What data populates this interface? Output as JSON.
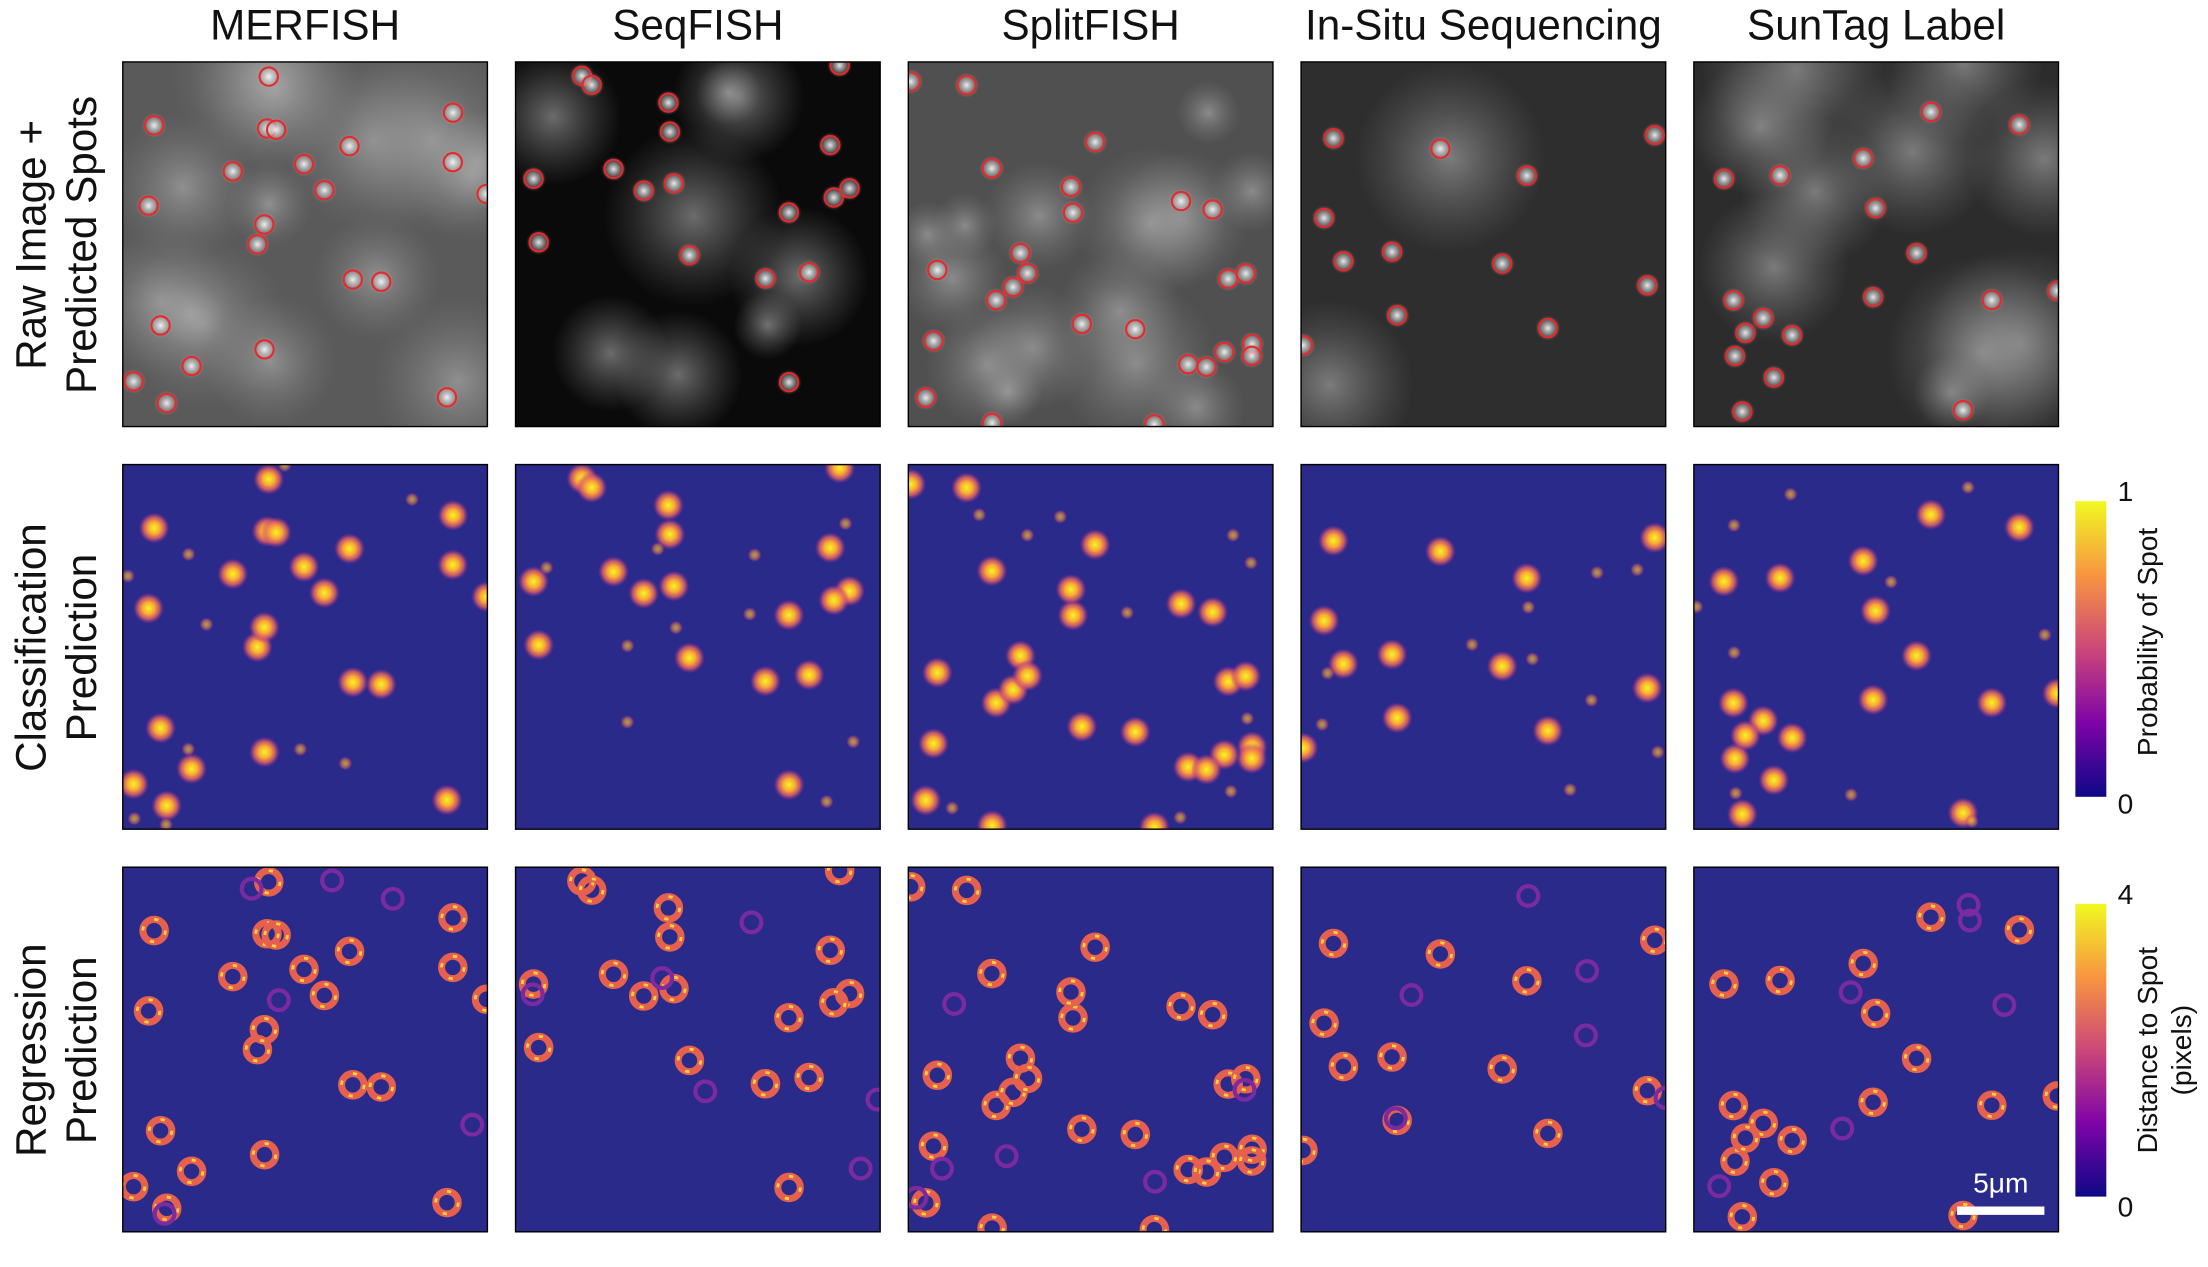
{
  "columns": [
    "MERFISH",
    "SeqFISH",
    "SplitFISH",
    "In-Situ Sequencing",
    "SunTag Label"
  ],
  "rows": [
    [
      "Raw Image +",
      "Predicted Spots"
    ],
    [
      "Classification",
      "Prediction"
    ],
    [
      "Regression",
      "Prediction"
    ]
  ],
  "colorbars": [
    {
      "title": [
        "Probability of Spot"
      ],
      "ticks": [
        "1",
        "0"
      ]
    },
    {
      "title": [
        "Distance to Spot",
        "(pixels)"
      ],
      "ticks": [
        "4",
        "0"
      ]
    }
  ],
  "scale_bar": "5μm"
}
